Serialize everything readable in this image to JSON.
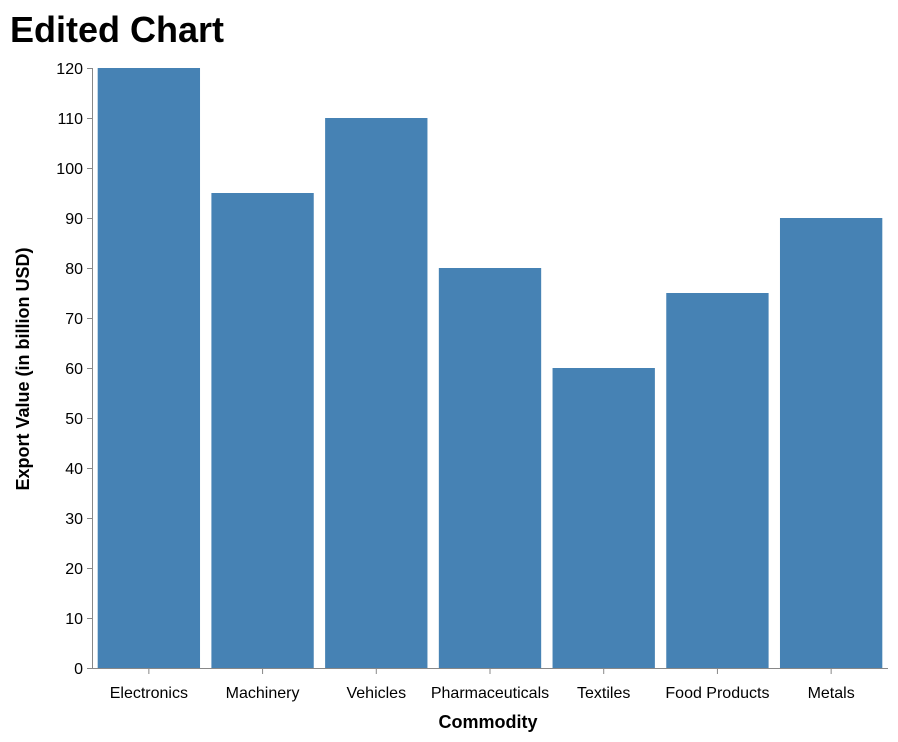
{
  "chart_data": {
    "type": "bar",
    "title": "Edited Chart",
    "xlabel": "Commodity",
    "ylabel": "Export Value (in billion USD)",
    "categories": [
      "Electronics",
      "Machinery",
      "Vehicles",
      "Pharmaceuticals",
      "Textiles",
      "Food Products",
      "Metals"
    ],
    "values": [
      120,
      95,
      110,
      80,
      60,
      75,
      90
    ],
    "ylim": [
      0,
      120
    ],
    "yticks": [
      0,
      10,
      20,
      30,
      40,
      50,
      60,
      70,
      80,
      90,
      100,
      110,
      120
    ],
    "bar_color": "#4682b4",
    "grid": false,
    "legend": "none"
  }
}
